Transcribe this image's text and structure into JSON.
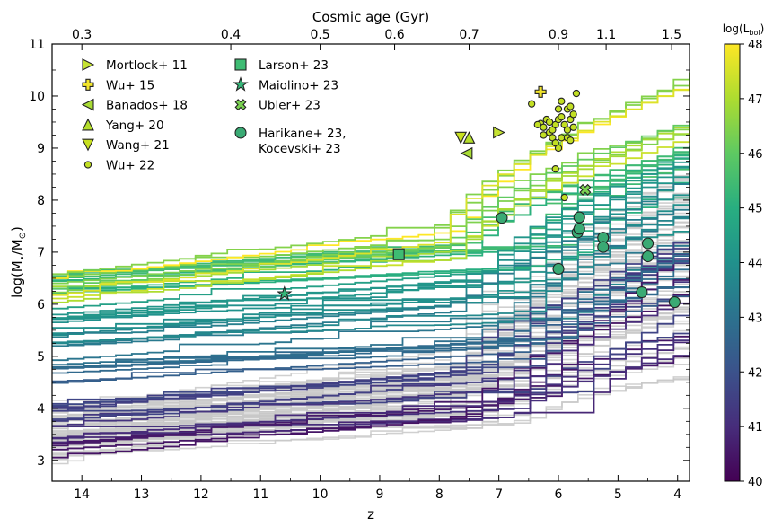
{
  "chart_data": {
    "type": "line",
    "xlabel": "z",
    "ylabel_main": "log(M",
    "ylabel_sub": "•",
    "ylabel_mid": "/M",
    "ylabel_sun": "⊙",
    "ylabel_end": ")",
    "top_axis_title": "Cosmic age (Gyr)",
    "xlim": [
      14.5,
      3.8
    ],
    "ylim": [
      2.6,
      11.0
    ],
    "xticks": [
      14,
      13,
      12,
      11,
      10,
      9,
      8,
      7,
      6,
      5,
      4
    ],
    "yticks": [
      3,
      4,
      5,
      6,
      7,
      8,
      9,
      10,
      11
    ],
    "top_ticks": [
      {
        "label": "0.3",
        "z": 14.0
      },
      {
        "label": "0.4",
        "z": 11.5
      },
      {
        "label": "0.5",
        "z": 10.0
      },
      {
        "label": "0.6",
        "z": 8.75
      },
      {
        "label": "0.7",
        "z": 7.5
      },
      {
        "label": "0.9",
        "z": 6.0
      },
      {
        "label": "1.1",
        "z": 5.2
      },
      {
        "label": "1.5",
        "z": 4.1
      }
    ],
    "colorbar": {
      "label_main": "log(L",
      "label_sub": "bol",
      "label_end": ")",
      "min": 40,
      "max": 48,
      "ticks": [
        40,
        41,
        42,
        43,
        44,
        45,
        46,
        47,
        48
      ],
      "colormap": "viridis"
    },
    "observations": [
      {
        "name": "Mortlock+ 11",
        "marker": "triangle-right",
        "color": "#c5e232",
        "points": [
          [
            7.0,
            9.3
          ]
        ]
      },
      {
        "name": "Wu+ 15",
        "marker": "plus",
        "color": "#f2e52a",
        "points": [
          [
            6.3,
            10.08
          ]
        ]
      },
      {
        "name": "Banados+ 18",
        "marker": "triangle-left",
        "color": "#a8db34",
        "points": [
          [
            7.54,
            8.9
          ]
        ]
      },
      {
        "name": "Yang+ 20",
        "marker": "triangle-up",
        "color": "#b5de2b",
        "points": [
          [
            7.5,
            9.2
          ]
        ]
      },
      {
        "name": "Wang+ 21",
        "marker": "triangle-down",
        "color": "#c8e020",
        "points": [
          [
            7.64,
            9.2
          ]
        ]
      },
      {
        "name": "Wu+ 22",
        "marker": "circle-small",
        "color": "#c2df23",
        "points": [
          [
            6.45,
            9.85
          ],
          [
            6.3,
            9.47
          ],
          [
            6.25,
            9.4
          ],
          [
            6.2,
            9.55
          ],
          [
            6.15,
            9.3
          ],
          [
            6.1,
            9.35
          ],
          [
            6.05,
            9.45
          ],
          [
            6.0,
            9.55
          ],
          [
            5.95,
            9.6
          ],
          [
            5.9,
            9.45
          ],
          [
            5.85,
            9.35
          ],
          [
            5.8,
            9.55
          ],
          [
            6.0,
            9.75
          ],
          [
            5.95,
            9.9
          ],
          [
            5.85,
            9.75
          ],
          [
            5.8,
            9.8
          ],
          [
            5.75,
            9.65
          ],
          [
            6.1,
            9.2
          ],
          [
            6.05,
            9.1
          ],
          [
            5.95,
            9.2
          ],
          [
            5.85,
            9.2
          ],
          [
            6.0,
            9.0
          ],
          [
            6.15,
            9.5
          ],
          [
            5.75,
            9.4
          ],
          [
            5.7,
            10.05
          ],
          [
            6.25,
            9.25
          ],
          [
            6.05,
            8.6
          ],
          [
            5.9,
            8.05
          ],
          [
            5.8,
            9.15
          ],
          [
            6.35,
            9.45
          ]
        ]
      },
      {
        "name": "Larson+ 23",
        "marker": "square",
        "color": "#3ebc73",
        "points": [
          [
            8.68,
            6.96
          ]
        ]
      },
      {
        "name": "Maiolino+ 23",
        "marker": "star",
        "color": "#35b779",
        "points": [
          [
            10.6,
            6.2
          ]
        ]
      },
      {
        "name": "Ubler+ 23",
        "marker": "cross",
        "color": "#7ad151",
        "points": [
          [
            5.55,
            8.2
          ]
        ]
      },
      {
        "name": "Harikane+ 23,",
        "name_line2": "Kocevski+ 23",
        "marker": "circle-big",
        "color": "#3aaa74",
        "points": [
          [
            6.95,
            7.66
          ],
          [
            5.65,
            7.67
          ],
          [
            5.68,
            7.38
          ],
          [
            5.65,
            7.45
          ],
          [
            5.25,
            7.28
          ],
          [
            5.25,
            7.1
          ],
          [
            6.0,
            6.68
          ],
          [
            4.6,
            6.23
          ],
          [
            4.5,
            7.17
          ],
          [
            4.5,
            6.92
          ],
          [
            4.05,
            6.04
          ]
        ]
      }
    ]
  }
}
